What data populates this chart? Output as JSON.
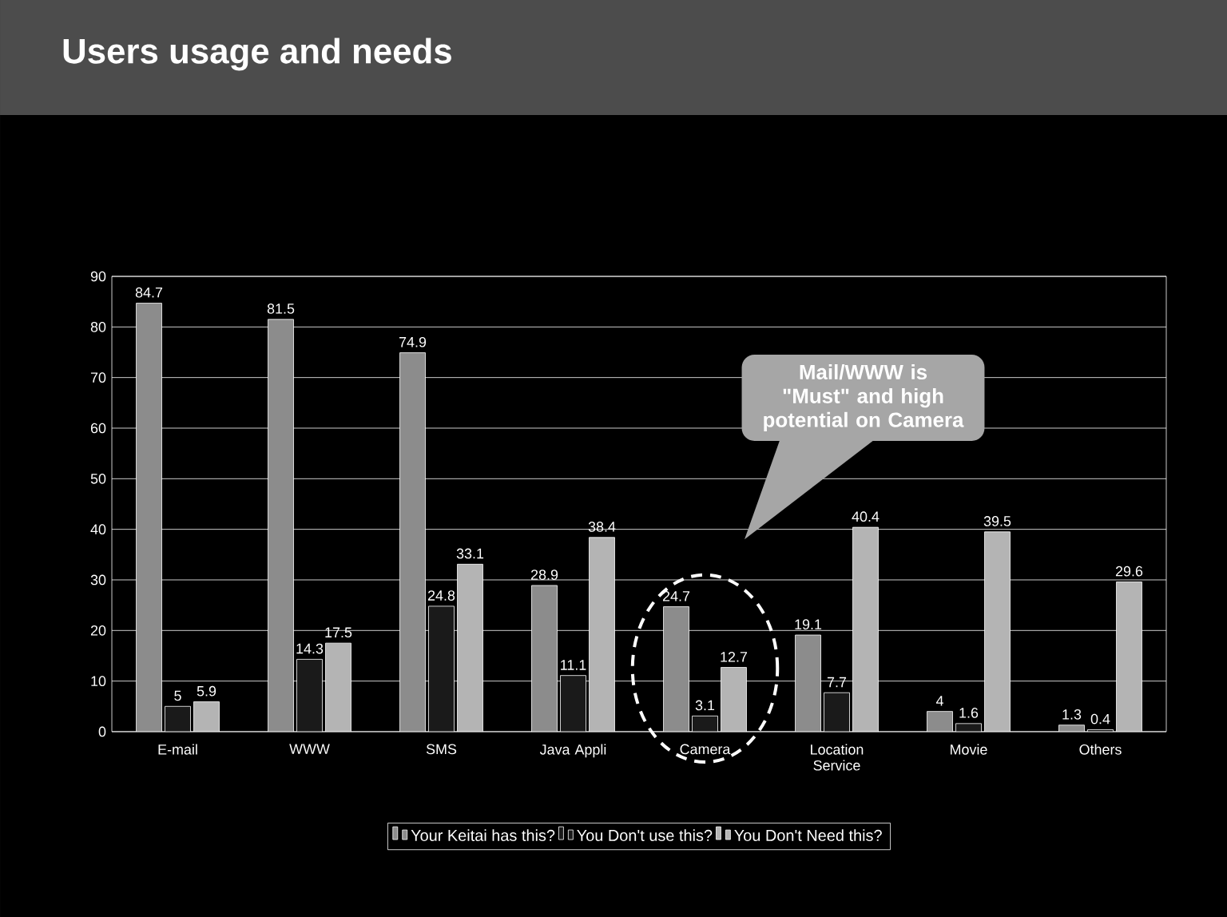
{
  "chart_data": {
    "type": "bar",
    "title": "Users usage and needs",
    "categories": [
      "E-mail",
      "WWW",
      "SMS",
      "Java Appli",
      "Camera",
      "Location Service",
      "Movie",
      "Others"
    ],
    "series": [
      {
        "name": "Your Keitai has this?",
        "color": "#8c8c8c",
        "values": [
          84.7,
          81.5,
          74.9,
          28.9,
          24.7,
          19.1,
          4,
          1.3
        ]
      },
      {
        "name": "You Don't use this?",
        "color": "#1a1a1a",
        "values": [
          5,
          14.3,
          24.8,
          11.1,
          3.1,
          7.7,
          1.6,
          0.4
        ]
      },
      {
        "name": "You Don't Need this?",
        "color": "#b4b4b4",
        "values": [
          5.9,
          17.5,
          33.1,
          38.4,
          12.7,
          40.4,
          39.5,
          29.6
        ]
      }
    ],
    "ylim": [
      0,
      90
    ],
    "yticks": [
      0,
      10,
      20,
      30,
      40,
      50,
      60,
      70,
      80,
      90
    ],
    "grid": "y",
    "legend": "bottom",
    "data_labels": true,
    "annotations": [
      "Mail/WWW is \"Must\" and high potential on Camera"
    ]
  }
}
